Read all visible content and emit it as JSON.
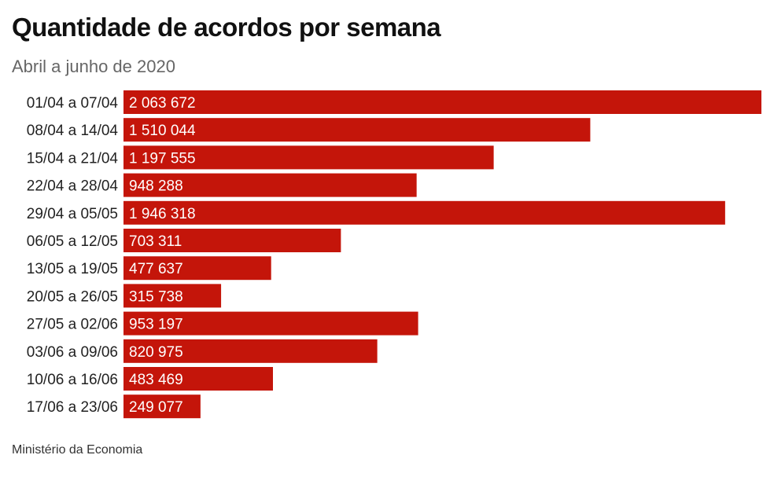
{
  "title": "Quantidade de acordos por semana",
  "subtitle": "Abril a junho de 2020",
  "source": "Ministério da Economia",
  "colors": {
    "bar": "#c4150a",
    "bar_label": "#ffffff",
    "category_label": "#222222"
  },
  "chart_data": {
    "type": "bar",
    "orientation": "horizontal",
    "title": "Quantidade de acordos por semana",
    "subtitle": "Abril a junho de 2020",
    "xlabel": "",
    "ylabel": "",
    "categories": [
      "01/04 a 07/04",
      "08/04 a 14/04",
      "15/04 a 21/04",
      "22/04 a 28/04",
      "29/04 a 05/05",
      "06/05 a 12/05",
      "13/05 a 19/05",
      "20/05 a 26/05",
      "27/05 a 02/06",
      "03/06 a 09/06",
      "10/06 a 16/06",
      "17/06 a 23/06"
    ],
    "values": [
      2063672,
      1510044,
      1197555,
      948288,
      1946318,
      703311,
      477637,
      315738,
      953197,
      820975,
      483469,
      249077
    ],
    "value_labels": [
      "2 063 672",
      "1 510 044",
      "1 197 555",
      "948 288",
      "1 946 318",
      "703 311",
      "477 637",
      "315 738",
      "953 197",
      "820 975",
      "483 469",
      "249 077"
    ],
    "xlim": [
      0,
      2063672
    ],
    "grid": false,
    "legend": "none"
  }
}
